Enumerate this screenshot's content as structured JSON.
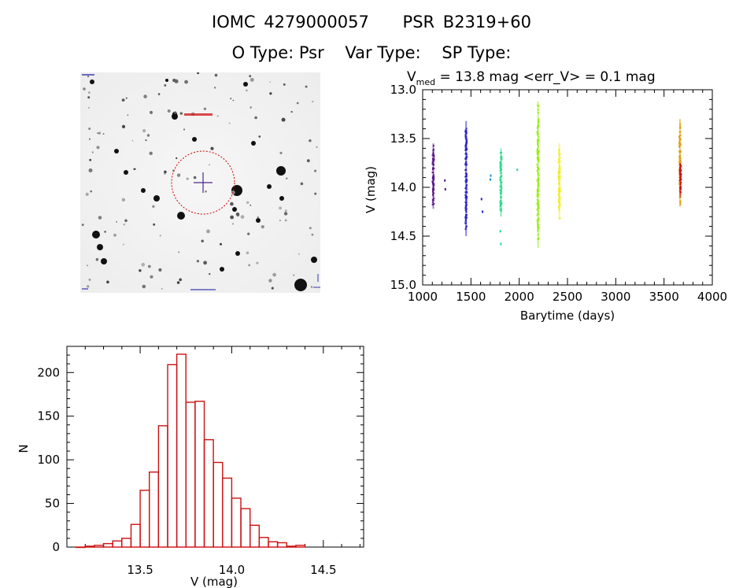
{
  "header": {
    "catalog_id": "IOMC 4279000057",
    "object_name": "PSR B2319+60",
    "o_type": "O Type: Psr",
    "var_type": "Var Type:",
    "sp_type": "SP Type:"
  },
  "image_panel": {
    "marker_color": "#d00000",
    "crosshair_color": "#4b2a8a"
  },
  "chart_data": [
    {
      "type": "scatter",
      "title_prefix": "V",
      "title_subscript": "med",
      "title_rest": " = 13.8 mag <err_V> = 0.1 mag",
      "xlabel": "Barytime (days)",
      "ylabel": "V (mag)",
      "xlim": [
        1000,
        4000
      ],
      "ylim": [
        15.0,
        13.0
      ],
      "y_inverted": true,
      "xticks": [
        "1000",
        "1500",
        "2000",
        "2500",
        "3000",
        "3500",
        "4000"
      ],
      "yticks": [
        "13.0",
        "13.5",
        "14.0",
        "14.5",
        "15.0"
      ],
      "grid": false,
      "series": [
        {
          "color": "#5a1a8c",
          "clusters": [
            {
              "x": 1110,
              "ymin": 13.55,
              "ymax": 14.22
            }
          ],
          "points": [
            [
              1230,
              13.93
            ],
            [
              1235,
              14.02
            ]
          ]
        },
        {
          "color": "#2a22cc",
          "clusters": [
            {
              "x": 1450,
              "ymin": 13.32,
              "ymax": 14.5
            }
          ],
          "points": [
            [
              1610,
              14.12
            ],
            [
              1620,
              14.25
            ]
          ]
        },
        {
          "color": "#1f8fe0",
          "clusters": [],
          "points": [
            [
              1700,
              13.92
            ],
            [
              1705,
              13.88
            ]
          ]
        },
        {
          "color": "#22dd88",
          "clusters": [
            {
              "x": 1810,
              "ymin": 13.6,
              "ymax": 14.3
            }
          ],
          "points": [
            [
              1805,
              14.45
            ],
            [
              1810,
              14.58
            ],
            [
              1980,
              13.82
            ]
          ]
        },
        {
          "color": "#99ee11",
          "clusters": [
            {
              "x": 2195,
              "ymin": 13.12,
              "ymax": 14.62
            }
          ],
          "points": []
        },
        {
          "color": "#eeee22",
          "clusters": [
            {
              "x": 2415,
              "ymin": 13.55,
              "ymax": 14.33
            }
          ],
          "points": []
        },
        {
          "color": "#e0a010",
          "clusters": [
            {
              "x": 3665,
              "ymin": 13.3,
              "ymax": 14.2
            }
          ],
          "points": []
        },
        {
          "color": "#cc1111",
          "clusters": [
            {
              "x": 3670,
              "ymin": 13.75,
              "ymax": 14.1
            }
          ],
          "points": []
        }
      ]
    },
    {
      "type": "bar",
      "xlabel": "V (mag)",
      "ylabel": "N",
      "xlim": [
        3.1,
        14.72
      ],
      "ylim": [
        0,
        230
      ],
      "xticks": [
        "13.5",
        "14.0",
        "14.5"
      ],
      "yticks": [
        "0",
        "50",
        "100",
        "150",
        "200"
      ],
      "bin_start": 13.15,
      "bin_width": 0.05,
      "values": [
        0,
        1,
        2,
        4,
        7,
        10,
        26,
        65,
        86,
        139,
        209,
        221,
        166,
        167,
        123,
        97,
        79,
        56,
        44,
        25,
        11,
        6,
        5,
        1,
        2
      ],
      "color": "#cc1111"
    }
  ]
}
